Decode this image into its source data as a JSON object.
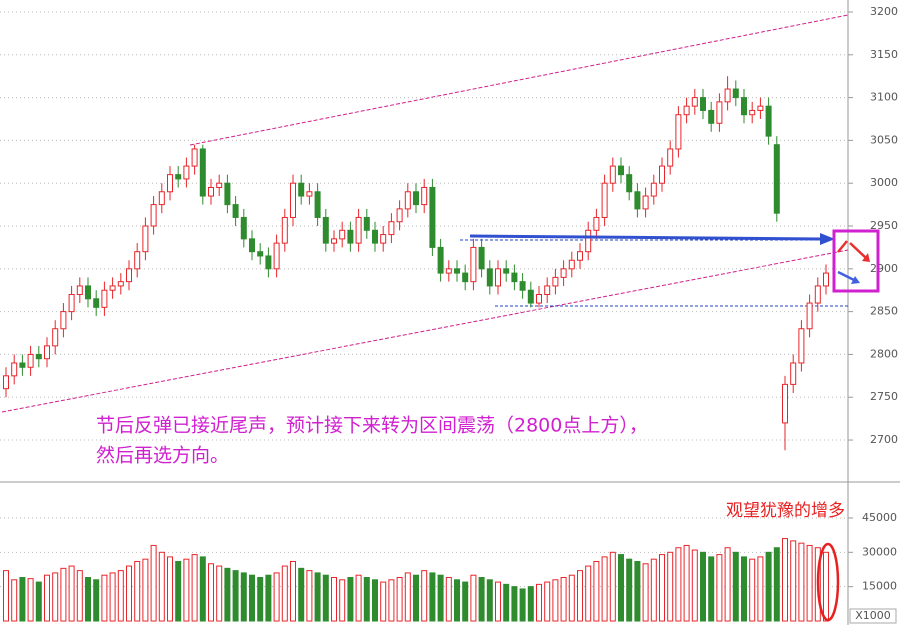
{
  "chart_data": {
    "type": "candlestick",
    "annotation": [
      "节后反弹已接近尾声，预计接下来转为区间震荡（2800点上方），",
      "然后再选方向。"
    ],
    "volume_annotation": "观望犹豫的增多",
    "volume_unit": "X1000",
    "up_color": "#e8252a",
    "down_color": "#2e8b2e",
    "ylim": [
      2665,
      3214
    ],
    "yticks": [
      2700,
      2750,
      2800,
      2850,
      2900,
      2950,
      3000,
      3050,
      3100,
      3150,
      3200
    ],
    "volume_ylim": [
      0,
      59400
    ],
    "volume_yticks": [
      15000,
      30000,
      45000
    ],
    "grid": true,
    "open": [
      2760,
      2775,
      2790,
      2785,
      2800,
      2795,
      2810,
      2830,
      2850,
      2870,
      2880,
      2865,
      2855,
      2875,
      2880,
      2885,
      2900,
      2920,
      2950,
      2975,
      2990,
      3010,
      3005,
      3020,
      3040,
      2985,
      2995,
      3000,
      2975,
      2960,
      2935,
      2920,
      2915,
      2900,
      2930,
      2960,
      3000,
      2985,
      2990,
      2960,
      2930,
      2935,
      2945,
      2930,
      2960,
      2945,
      2930,
      2940,
      2955,
      2970,
      2990,
      2975,
      2995,
      2925,
      2895,
      2900,
      2895,
      2885,
      2925,
      2900,
      2880,
      2900,
      2895,
      2885,
      2875,
      2860,
      2870,
      2880,
      2890,
      2900,
      2910,
      2920,
      2945,
      2960,
      3000,
      3020,
      3010,
      2990,
      2970,
      2985,
      3000,
      3020,
      3040,
      3080,
      3090,
      3100,
      3085,
      3070,
      3095,
      3110,
      3100,
      3080,
      3085,
      3090,
      3045,
      2720,
      2765,
      2790,
      2830,
      2860,
      2880
    ],
    "high": [
      2785,
      2800,
      2800,
      2810,
      2810,
      2820,
      2840,
      2860,
      2880,
      2890,
      2890,
      2875,
      2885,
      2890,
      2895,
      2910,
      2930,
      2960,
      2985,
      3000,
      3020,
      3020,
      3030,
      3045,
      3045,
      3005,
      3010,
      3010,
      2985,
      2970,
      2945,
      2930,
      2925,
      2940,
      2970,
      3010,
      3010,
      3000,
      3000,
      2970,
      2945,
      2955,
      2955,
      2970,
      2970,
      2955,
      2950,
      2965,
      2980,
      3000,
      3000,
      3005,
      3005,
      2935,
      2910,
      2910,
      2905,
      2935,
      2935,
      2910,
      2910,
      2910,
      2905,
      2895,
      2885,
      2880,
      2890,
      2900,
      2910,
      2920,
      2930,
      2955,
      2970,
      3010,
      3030,
      3030,
      3020,
      3000,
      2995,
      3010,
      3030,
      3050,
      3090,
      3100,
      3110,
      3110,
      3095,
      3105,
      3125,
      3120,
      3110,
      3095,
      3100,
      3100,
      3055,
      2775,
      2800,
      2840,
      2870,
      2890,
      2905
    ],
    "low": [
      2750,
      2765,
      2775,
      2775,
      2785,
      2785,
      2800,
      2820,
      2840,
      2860,
      2855,
      2845,
      2845,
      2865,
      2870,
      2875,
      2890,
      2910,
      2940,
      2965,
      2980,
      2995,
      2995,
      3010,
      2975,
      2975,
      2985,
      2965,
      2950,
      2925,
      2910,
      2905,
      2890,
      2890,
      2920,
      2950,
      2975,
      2975,
      2950,
      2920,
      2920,
      2925,
      2920,
      2920,
      2935,
      2920,
      2920,
      2930,
      2945,
      2960,
      2965,
      2965,
      2915,
      2885,
      2885,
      2885,
      2875,
      2875,
      2890,
      2870,
      2870,
      2885,
      2875,
      2865,
      2855,
      2855,
      2860,
      2870,
      2880,
      2890,
      2900,
      2910,
      2935,
      2950,
      2990,
      3000,
      2980,
      2960,
      2960,
      2975,
      2990,
      3010,
      3030,
      3070,
      3080,
      3075,
      3060,
      3060,
      3085,
      3090,
      3070,
      3070,
      3075,
      3045,
      2955,
      2688,
      2755,
      2780,
      2820,
      2850,
      2870
    ],
    "close": [
      2775,
      2790,
      2785,
      2800,
      2795,
      2810,
      2830,
      2850,
      2870,
      2880,
      2865,
      2855,
      2875,
      2880,
      2885,
      2900,
      2920,
      2950,
      2975,
      2990,
      3010,
      3005,
      3020,
      3040,
      2985,
      2995,
      3000,
      2975,
      2960,
      2935,
      2920,
      2915,
      2900,
      2930,
      2960,
      3000,
      2985,
      2990,
      2960,
      2930,
      2935,
      2945,
      2930,
      2960,
      2945,
      2930,
      2940,
      2955,
      2970,
      2990,
      2975,
      2995,
      2925,
      2895,
      2900,
      2895,
      2885,
      2925,
      2900,
      2880,
      2900,
      2895,
      2885,
      2875,
      2860,
      2870,
      2880,
      2890,
      2900,
      2910,
      2920,
      2945,
      2960,
      3000,
      3020,
      3010,
      2990,
      2970,
      2985,
      3000,
      3020,
      3040,
      3080,
      3090,
      3100,
      3085,
      3070,
      3095,
      3110,
      3100,
      3080,
      3085,
      3090,
      3055,
      2965,
      2765,
      2790,
      2830,
      2860,
      2880,
      2895
    ],
    "volume": [
      22000,
      18000,
      19000,
      18500,
      17000,
      20000,
      21000,
      23000,
      24000,
      22000,
      19000,
      18000,
      20000,
      21000,
      22000,
      24000,
      26000,
      27000,
      33000,
      30000,
      28000,
      26000,
      27000,
      29000,
      28000,
      25000,
      24000,
      23000,
      22000,
      21000,
      20000,
      19000,
      20000,
      21000,
      24000,
      26000,
      23000,
      22000,
      21000,
      20000,
      19000,
      18000,
      19000,
      20000,
      19000,
      18000,
      17000,
      18000,
      19000,
      21000,
      20000,
      22000,
      21000,
      20000,
      19000,
      18000,
      17000,
      20000,
      19000,
      18000,
      17000,
      16000,
      15000,
      14000,
      15000,
      16000,
      17000,
      18000,
      19000,
      20000,
      22000,
      24000,
      26000,
      28000,
      30000,
      29000,
      27000,
      26000,
      25000,
      27000,
      29000,
      30000,
      32000,
      33000,
      31000,
      30000,
      28000,
      29000,
      32000,
      30000,
      28000,
      27000,
      28000,
      30000,
      32000,
      36000,
      35000,
      34000,
      33000,
      32000,
      30000
    ]
  }
}
